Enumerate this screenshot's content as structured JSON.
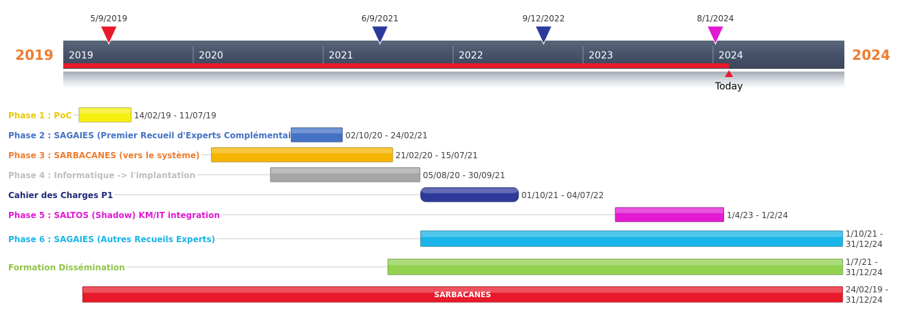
{
  "chart_data": {
    "type": "gantt-timeline",
    "start_label": "2019",
    "end_label": "2024",
    "year_labels": [
      "2019",
      "2020",
      "2021",
      "2022",
      "2023",
      "2024"
    ],
    "today_label": "Today",
    "today_date": "2024-02-15",
    "milestones": [
      {
        "label": "5/9/2019",
        "date": "2019-05-09",
        "color": "#e8192a"
      },
      {
        "label": "6/9/2021",
        "date": "2021-06-09",
        "color": "#2b3b9c"
      },
      {
        "label": "9/12/2022",
        "date": "2022-09-12",
        "color": "#2b3b9c"
      },
      {
        "label": "8/1/2024",
        "date": "2024-01-08",
        "color": "#e11ad2"
      }
    ],
    "tasks": [
      {
        "name": "Phase 1 : PoC",
        "start": "2019-02-14",
        "end": "2019-07-11",
        "date_label": "14/02/19 - 11/07/19",
        "color": "#f5ef10",
        "label_color": "#e8c90c"
      },
      {
        "name": "Phase 2 : SAGAIES (Premier Recueil d'Experts Complémentaire)",
        "start": "2020-10-02",
        "end": "2021-02-24",
        "date_label": "02/10/20 - 24/02/21",
        "color": "#4472c4",
        "label_color": "#4472c4"
      },
      {
        "name": "Phase 3 : SARBACANES  (vers le système)",
        "start": "2020-02-21",
        "end": "2021-07-15",
        "date_label": "21/02/20 - 15/07/21",
        "color": "#f4b400",
        "label_color": "#ed7d31"
      },
      {
        "name": "Phase 4 : Informatique -> l'implantation",
        "start": "2020-08-05",
        "end": "2021-09-30",
        "date_label": "05/08/20 - 30/09/21",
        "color": "#a6a6a6",
        "label_color": "#bfbfbf"
      },
      {
        "name": "Cahier des Charges P1",
        "start": "2021-10-01",
        "end": "2022-07-04",
        "date_label": "01/10/21 - 04/07/22",
        "color": "#2e3a9a",
        "label_color": "#1f2a78",
        "rounded": true
      },
      {
        "name": "Phase 5 : SALTOS  (Shadow) KM/IT  integration",
        "start": "2023-04-01",
        "end": "2024-02-01",
        "date_label": "1/4/23 - 1/2/24",
        "color": "#e11ad2",
        "label_color": "#e11ad2"
      },
      {
        "name": "Phase 6 : SAGAIES (Autres Recueils Experts)",
        "start": "2021-10-01",
        "end": "2024-12-31",
        "date_label": "1/10/21 - 31/12/24",
        "color": "#19b4e8",
        "label_color": "#19b4e8"
      },
      {
        "name": "Formation Dissémination",
        "start": "2021-07-01",
        "end": "2024-12-31",
        "date_label": "1/7/21 - 31/12/24",
        "color": "#92d050",
        "label_color": "#92c44a"
      },
      {
        "name": "",
        "start": "2019-02-24",
        "end": "2024-12-31",
        "date_label": "24/02/19 - 31/12/24",
        "color": "#e8192a",
        "inner_label": "SARBACANES"
      }
    ]
  }
}
